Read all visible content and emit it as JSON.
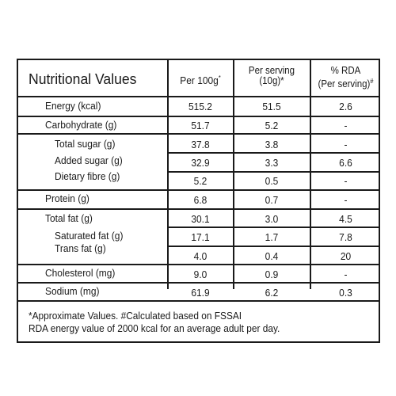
{
  "header": {
    "title": "Nutritional Values",
    "col1": "Per 100g",
    "col1_mark": "*",
    "col2_line1": "Per serving",
    "col2_line2": "(10g)*",
    "col3_line1": "% RDA",
    "col3_line2": "(Per serving)",
    "col3_mark": "#"
  },
  "rows": {
    "energy": {
      "label": "Energy (kcal)",
      "per100": "515.2",
      "serving": "51.5",
      "rda": "2.6"
    },
    "carb": {
      "label": "Carbohydrate (g)",
      "per100": "51.7",
      "serving": "5.2",
      "rda": "-"
    },
    "total_sugar": {
      "label": "Total sugar (g)",
      "per100": "37.8",
      "serving": "3.8",
      "rda": "-"
    },
    "added_sugar": {
      "label": "Added sugar (g)",
      "per100": "32.9",
      "serving": "3.3",
      "rda": "6.6"
    },
    "fibre": {
      "label": "Dietary fibre (g)",
      "per100": "5.2",
      "serving": "0.5",
      "rda": "-"
    },
    "protein": {
      "label": "Protein (g)",
      "per100": "6.8",
      "serving": "0.7",
      "rda": "-"
    },
    "total_fat": {
      "label": "Total fat (g)",
      "per100": "30.1",
      "serving": "3.0",
      "rda": "4.5"
    },
    "sat_fat": {
      "label": "Saturated fat (g)",
      "per100": "17.1",
      "serving": "1.7",
      "rda": "7.8"
    },
    "trans_fat": {
      "label": "Trans fat (g)",
      "per100": "4.0",
      "serving": "0.4",
      "rda": "20"
    },
    "cholesterol": {
      "label": "Cholesterol (mg)",
      "per100": "9.0",
      "serving": "0.9",
      "rda": "-"
    },
    "sodium": {
      "label": "Sodium (mg)",
      "per100": "61.9",
      "serving": "6.2",
      "rda": "0.3"
    }
  },
  "footnote": {
    "line1": "*Approximate Values. #Calculated based on FSSAI",
    "line2": "RDA energy value of 2000 kcal for an average adult per day."
  }
}
